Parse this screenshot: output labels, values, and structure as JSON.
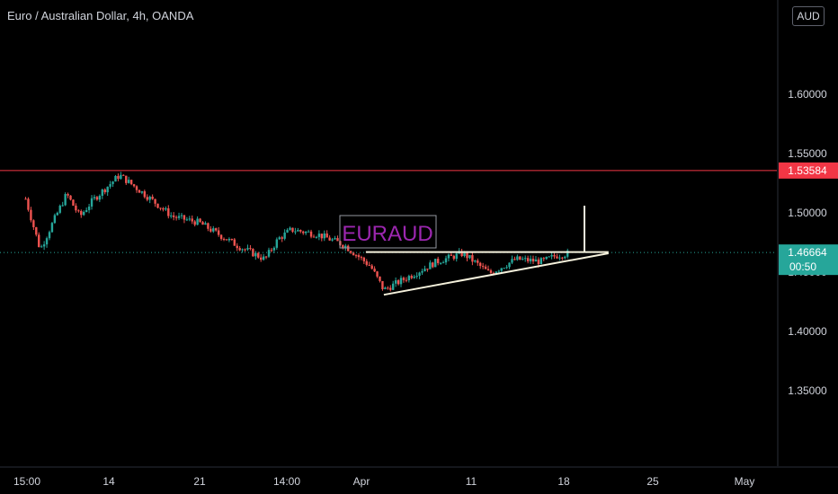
{
  "header": {
    "title": "Euro / Australian Dollar, 4h, OANDA",
    "currency": "AUD"
  },
  "colors": {
    "background": "#000000",
    "up": "#26a69a",
    "down": "#ef5350",
    "resistance": "#f23645",
    "current_price": "#26a69a",
    "drawing": "#f5f1dc",
    "watermark_text": "#9c27b0",
    "axis_text": "#d1d4dc"
  },
  "annotations": {
    "watermark": "EURAUD",
    "resistance_label": "1.53584",
    "current_price_label": "1.46664",
    "countdown_label": "00:50"
  },
  "chart_data": {
    "type": "candlestick",
    "title": "Euro / Australian Dollar, 4h, OANDA",
    "y_axis": {
      "ticks": [
        1.6,
        1.55,
        1.5,
        1.45,
        1.4,
        1.35
      ],
      "tick_labels": [
        "1.60000",
        "1.55000",
        "1.50000",
        "1.45000",
        "1.40000",
        "1.35000"
      ],
      "range": [
        1.3238,
        1.6608
      ],
      "side": "right"
    },
    "x_axis": {
      "tick_labels": [
        "15:00",
        "14",
        "21",
        "14:00",
        "Apr",
        "11",
        "18",
        "25",
        "May"
      ]
    },
    "horizontal_lines": [
      {
        "price": 1.53584,
        "label": "1.53584",
        "role": "resistance"
      },
      {
        "price": 1.46664,
        "label": "1.46664",
        "role": "current price"
      }
    ],
    "pattern": "ascending triangle",
    "triangle": {
      "flat_top_price": 1.467,
      "rising_support_from": {
        "time": "Apr 5",
        "price": 1.431
      },
      "apex": {
        "time": "Apr 22",
        "price": 1.466
      }
    },
    "price_path": [
      {
        "time": "Mar 9 15:00",
        "price": 1.512
      },
      {
        "time": "Mar 10",
        "price": 1.469
      },
      {
        "time": "Mar 11",
        "price": 1.493
      },
      {
        "time": "Mar 12",
        "price": 1.516
      },
      {
        "time": "Mar 13",
        "price": 1.497
      },
      {
        "time": "Mar 14",
        "price": 1.511
      },
      {
        "time": "Mar 16",
        "price": 1.532
      },
      {
        "time": "Mar 18",
        "price": 1.515
      },
      {
        "time": "Mar 20",
        "price": 1.497
      },
      {
        "time": "Mar 22",
        "price": 1.492
      },
      {
        "time": "Mar 25",
        "price": 1.472
      },
      {
        "time": "Mar 27 14:00",
        "price": 1.461
      },
      {
        "time": "Mar 28",
        "price": 1.478
      },
      {
        "time": "Mar 29",
        "price": 1.486
      },
      {
        "time": "Mar 31",
        "price": 1.482
      },
      {
        "time": "Apr 2",
        "price": 1.473
      },
      {
        "time": "Apr 4",
        "price": 1.455
      },
      {
        "time": "Apr 5",
        "price": 1.435
      },
      {
        "time": "Apr 7",
        "price": 1.447
      },
      {
        "time": "Apr 9",
        "price": 1.459
      },
      {
        "time": "Apr 11",
        "price": 1.466
      },
      {
        "time": "Apr 13",
        "price": 1.449
      },
      {
        "time": "Apr 15",
        "price": 1.461
      },
      {
        "time": "Apr 17",
        "price": 1.459
      },
      {
        "time": "Apr 18",
        "price": 1.464
      },
      {
        "time": "Apr 19",
        "price": 1.466
      }
    ]
  }
}
